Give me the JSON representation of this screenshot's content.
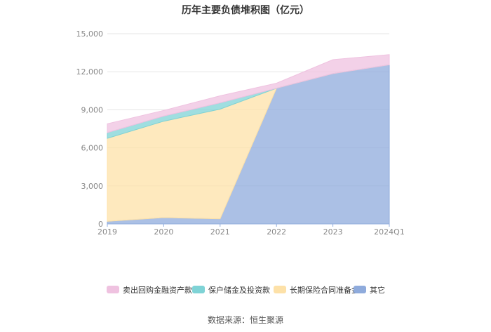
{
  "title": "历年主要负债堆积图（亿元）",
  "source": "数据来源：恒生聚源",
  "chart_data": {
    "type": "area",
    "stacked": true,
    "categories": [
      "2019",
      "2020",
      "2021",
      "2022",
      "2023",
      "2024Q1"
    ],
    "ylim": [
      0,
      15000
    ],
    "yticks": [
      0,
      3000,
      6000,
      9000,
      12000,
      15000
    ],
    "ytick_labels": [
      "0",
      "3,000",
      "6,000",
      "9,000",
      "12,000",
      "15,000"
    ],
    "grid": true,
    "legend_position": "bottom",
    "series": [
      {
        "name": "其它",
        "color": "#8fabdc",
        "values": [
          200,
          500,
          400,
          10700,
          11850,
          12550
        ]
      },
      {
        "name": "长期保险合同准备金",
        "color": "#fde1a8",
        "values": [
          6550,
          7600,
          8650,
          0,
          0,
          0
        ]
      },
      {
        "name": "保户储金及投资款",
        "color": "#7fd3d6",
        "values": [
          450,
          400,
          500,
          0,
          0,
          0
        ]
      },
      {
        "name": "卖出回购金融资产款",
        "color": "#efc2e0",
        "values": [
          700,
          450,
          550,
          400,
          1100,
          800
        ]
      }
    ],
    "legend_order": [
      "卖出回购金融资产款",
      "保户储金及投资款",
      "长期保险合同准备金",
      "其它"
    ]
  }
}
